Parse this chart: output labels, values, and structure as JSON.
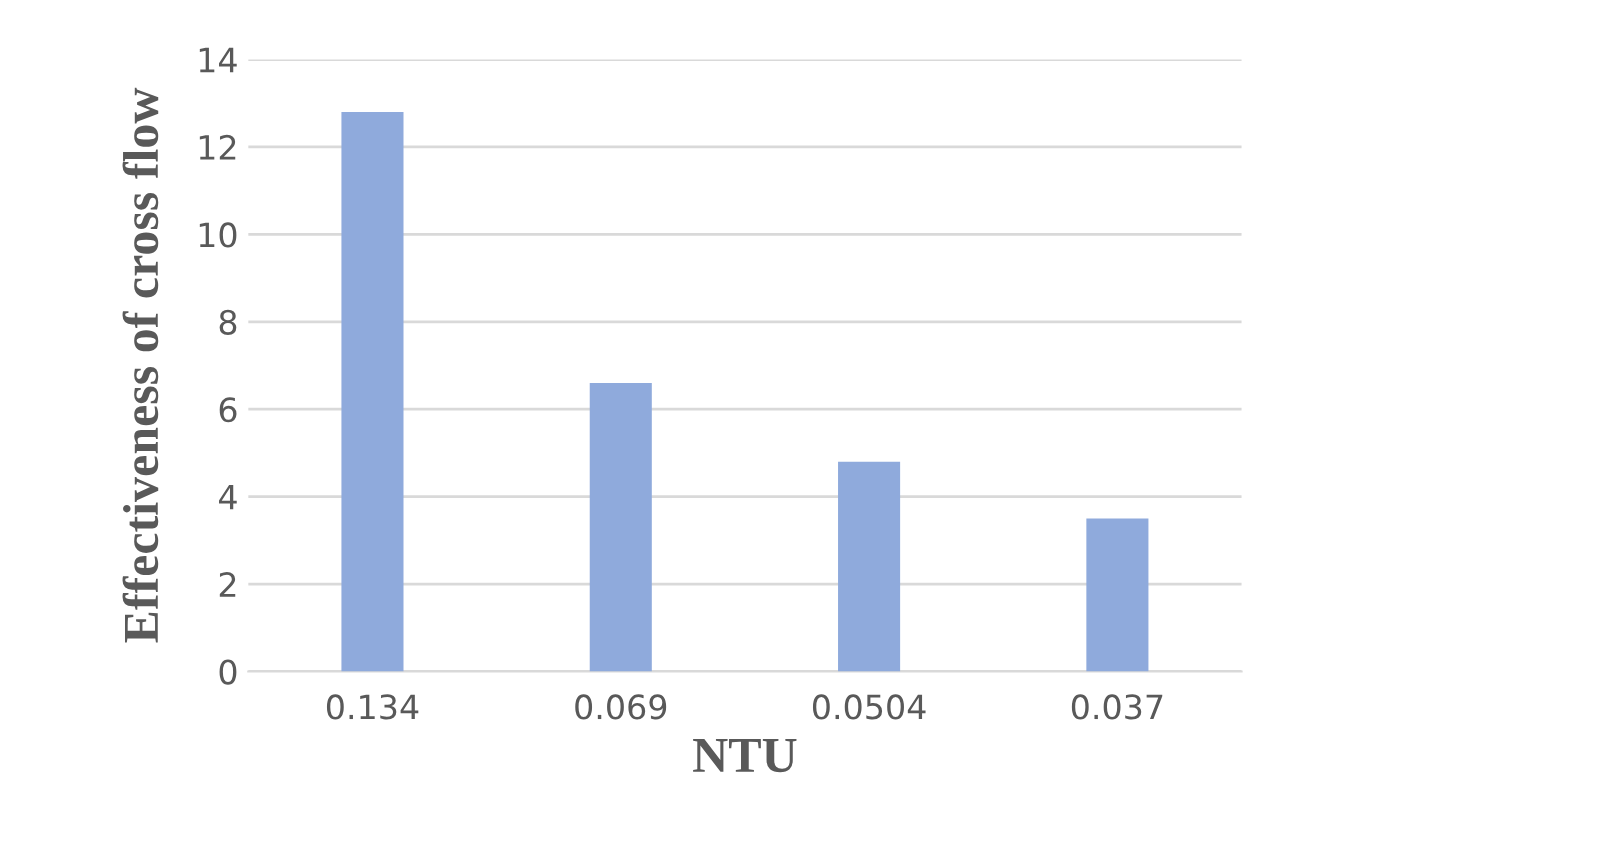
{
  "chart_data": {
    "type": "bar",
    "xlabel": "NTU",
    "ylabel": "Effectiveness of cross flow",
    "categories": [
      "0.134",
      "0.069",
      "0.0504",
      "0.037"
    ],
    "values": [
      12.8,
      6.6,
      4.8,
      3.5
    ],
    "color": "#8faadc",
    "ylim": [
      0,
      14
    ],
    "yticks": [
      0,
      2,
      4,
      6,
      8,
      10,
      12,
      14
    ],
    "grid": "y",
    "legend": false
  }
}
